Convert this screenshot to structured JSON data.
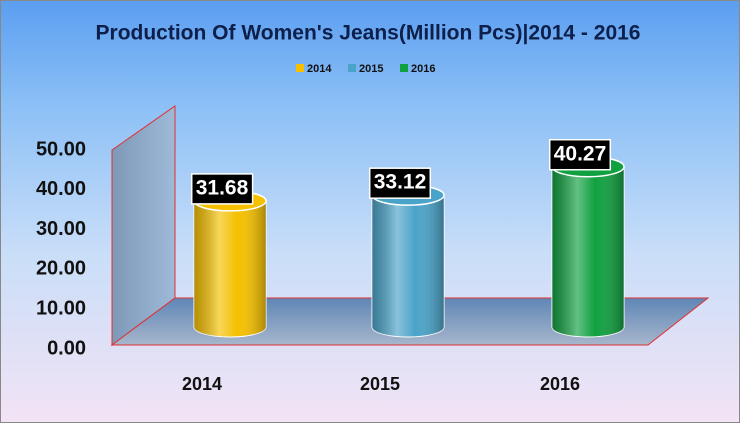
{
  "chart_data": {
    "type": "bar3d-cylinder",
    "title": "Production Of Women's Jeans(Million Pcs)|2014 - 2016",
    "categories": [
      "2014",
      "2015",
      "2016"
    ],
    "values": [
      31.68,
      33.12,
      40.27
    ],
    "colors": [
      "#f5c000",
      "#4aa3c8",
      "#10a040"
    ],
    "ylim": [
      0,
      50
    ],
    "yticks": [
      {
        "value": 0,
        "label": "0.00"
      },
      {
        "value": 10,
        "label": "10.00"
      },
      {
        "value": 20,
        "label": "20.00"
      },
      {
        "value": 30,
        "label": "30.00"
      },
      {
        "value": 40,
        "label": "40.00"
      },
      {
        "value": 50,
        "label": "50.00"
      }
    ],
    "legend": "top"
  }
}
